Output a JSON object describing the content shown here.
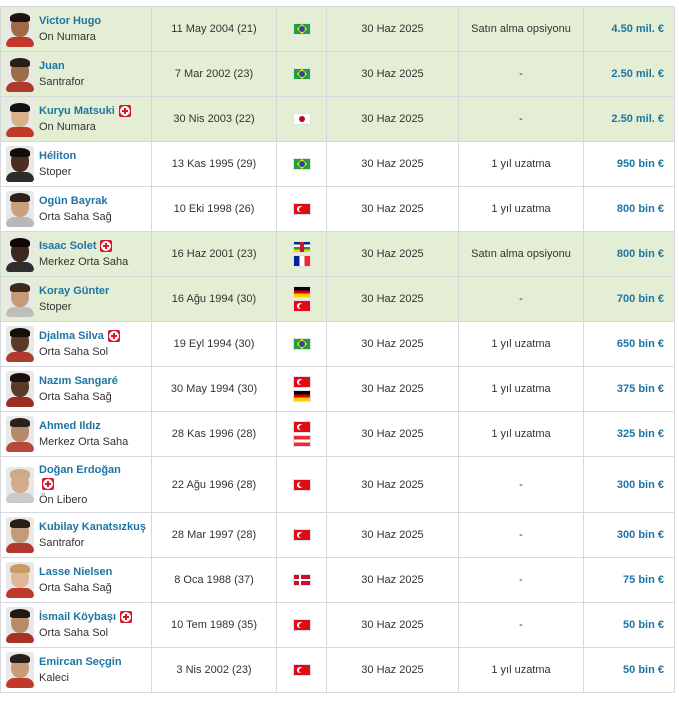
{
  "players": [
    {
      "name": "Victor Hugo",
      "position": "On Numara",
      "dob": "11 May 2004 (21)",
      "flags": [
        "br"
      ],
      "contract": "30 Haz 2025",
      "option": "Satın alma opsiyonu",
      "value": "4.50 mil. €",
      "injury": false,
      "highlight": true,
      "skin": "#a06a45",
      "hair": "#1c1410",
      "shirt": "#c0392b"
    },
    {
      "name": "Juan",
      "position": "Santrafor",
      "dob": "7 Mar 2002 (23)",
      "flags": [
        "br"
      ],
      "contract": "30 Haz 2025",
      "option": "-",
      "value": "2.50 mil. €",
      "injury": false,
      "highlight": true,
      "skin": "#9b6b4a",
      "hair": "#2a1d14",
      "shirt": "#b03a2e"
    },
    {
      "name": "Kuryu Matsuki",
      "position": "On Numara",
      "dob": "30 Nis 2003 (22)",
      "flags": [
        "jp"
      ],
      "contract": "30 Haz 2025",
      "option": "-",
      "value": "2.50 mil. €",
      "injury": true,
      "highlight": true,
      "skin": "#d9b08c",
      "hair": "#111111",
      "shirt": "#c0392b"
    },
    {
      "name": "Héliton",
      "position": "Stoper",
      "dob": "13 Kas 1995 (29)",
      "flags": [
        "br"
      ],
      "contract": "30 Haz 2025",
      "option": "1 yıl uzatma",
      "value": "950 bin €",
      "injury": false,
      "highlight": false,
      "skin": "#4a2f20",
      "hair": "#120c08",
      "shirt": "#2c2c2c"
    },
    {
      "name": "Ogün Bayrak",
      "position": "Orta Saha Sağ",
      "dob": "10 Eki 1998 (26)",
      "flags": [
        "tr"
      ],
      "contract": "30 Haz 2025",
      "option": "1 yıl uzatma",
      "value": "800 bin €",
      "injury": false,
      "highlight": false,
      "skin": "#c9a07f",
      "hair": "#2b211a",
      "shirt": "#b8b8b8"
    },
    {
      "name": "Isaac Solet",
      "position": "Merkez Orta Saha",
      "dob": "16 Haz 2001 (23)",
      "flags": [
        "cf",
        "fr"
      ],
      "contract": "30 Haz 2025",
      "option": "Satın alma opsiyonu",
      "value": "800 bin €",
      "injury": true,
      "highlight": true,
      "skin": "#3d271a",
      "hair": "#0e0906",
      "shirt": "#2f2f2f"
    },
    {
      "name": "Koray Günter",
      "position": "Stoper",
      "dob": "16 Ağu 1994 (30)",
      "flags": [
        "de",
        "tr"
      ],
      "contract": "30 Haz 2025",
      "option": "-",
      "value": "700 bin €",
      "injury": false,
      "highlight": true,
      "skin": "#c69a78",
      "hair": "#3a2a1d",
      "shirt": "#bdbdbd"
    },
    {
      "name": "Djalma Silva",
      "position": "Orta Saha Sol",
      "dob": "19 Eyl 1994 (30)",
      "flags": [
        "br"
      ],
      "contract": "30 Haz 2025",
      "option": "1 yıl uzatma",
      "value": "650 bin €",
      "injury": true,
      "highlight": false,
      "skin": "#5a3a26",
      "hair": "#150e09",
      "shirt": "#b03a2e"
    },
    {
      "name": "Nazım Sangaré",
      "position": "Orta Saha Sağ",
      "dob": "30 May 1994 (30)",
      "flags": [
        "tr",
        "de"
      ],
      "contract": "30 Haz 2025",
      "option": "1 yıl uzatma",
      "value": "375 bin €",
      "injury": false,
      "highlight": false,
      "skin": "#5b3b27",
      "hair": "#1a110b",
      "shirt": "#9b2c22"
    },
    {
      "name": "Ahmed Ildız",
      "position": "Merkez Orta Saha",
      "dob": "28 Kas 1996 (28)",
      "flags": [
        "tr",
        "at"
      ],
      "contract": "30 Haz 2025",
      "option": "1 yıl uzatma",
      "value": "325 bin €",
      "injury": false,
      "highlight": false,
      "skin": "#b58a68",
      "hair": "#2e2118",
      "shirt": "#b5483a"
    },
    {
      "name": "Doğan Erdoğan",
      "position": "Ön Libero",
      "dob": "22 Ağu 1996 (28)",
      "flags": [
        "tr"
      ],
      "contract": "30 Haz 2025",
      "option": "-",
      "value": "300 bin €",
      "injury": true,
      "highlight": false,
      "tall": true,
      "skin": "#d4ab8a",
      "hair": "#cda98a",
      "shirt": "#c9c9c9"
    },
    {
      "name": "Kubilay Kanatsızkuş",
      "position": "Santrafor",
      "dob": "28 Mar 1997 (28)",
      "flags": [
        "tr"
      ],
      "contract": "30 Haz 2025",
      "option": "-",
      "value": "300 bin €",
      "injury": false,
      "highlight": false,
      "skin": "#c49a79",
      "hair": "#2a1f17",
      "shirt": "#b03a2e"
    },
    {
      "name": "Lasse Nielsen",
      "position": "Orta Saha Sağ",
      "dob": "8 Oca 1988 (37)",
      "flags": [
        "dk"
      ],
      "contract": "30 Haz 2025",
      "option": "-",
      "value": "75 bin €",
      "injury": false,
      "highlight": false,
      "skin": "#e0b897",
      "hair": "#c79a62",
      "shirt": "#c0392b"
    },
    {
      "name": "İsmail Köybaşı",
      "position": "Orta Saha Sol",
      "dob": "10 Tem 1989 (35)",
      "flags": [
        "tr"
      ],
      "contract": "30 Haz 2025",
      "option": "-",
      "value": "50 bin €",
      "injury": true,
      "highlight": false,
      "skin": "#b88c6b",
      "hair": "#231912",
      "shirt": "#a93226"
    },
    {
      "name": "Emircan Seçgin",
      "position": "Kaleci",
      "dob": "3 Nis 2002 (23)",
      "flags": [
        "tr"
      ],
      "contract": "30 Haz 2025",
      "option": "1 yıl uzatma",
      "value": "50 bin €",
      "injury": false,
      "highlight": false,
      "skin": "#c59b7a",
      "hair": "#2b1f17",
      "shirt": "#c0392b"
    }
  ],
  "colors": {
    "highlight_row": "#e3eed4",
    "link_blue": "#1d75a3",
    "injury_red": "#d5162a"
  }
}
